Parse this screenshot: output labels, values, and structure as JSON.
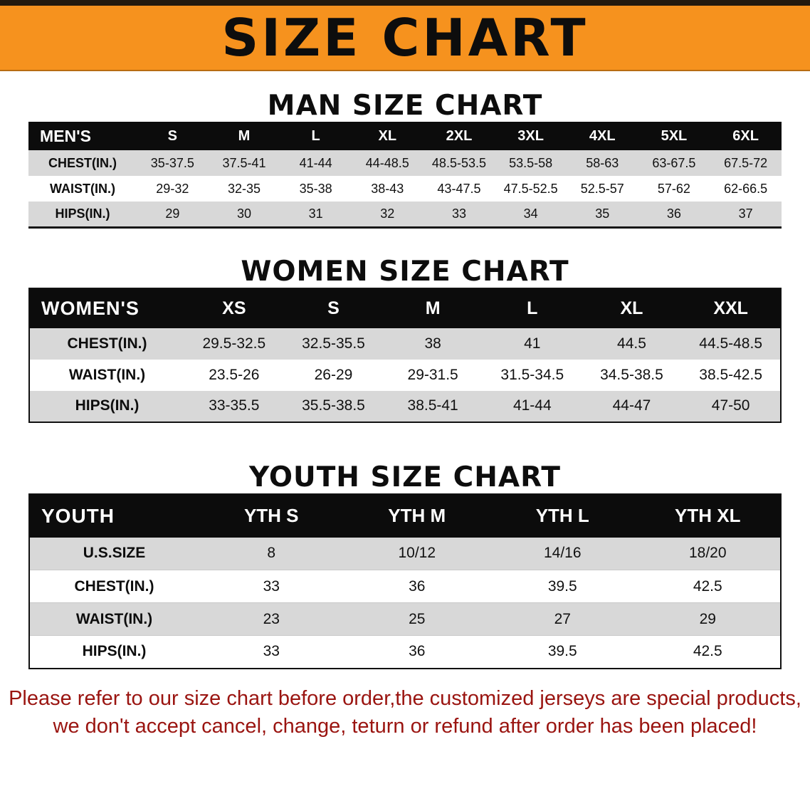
{
  "banner": {
    "title": "SIZE CHART",
    "bg_color": "#f6921e"
  },
  "colors": {
    "header_bg": "#0c0c0c",
    "stripe_gray": "#d8d8d8",
    "notice_red": "#9a1410"
  },
  "sections": [
    {
      "heading": "MAN SIZE CHART",
      "table": {
        "header": [
          "MEN'S",
          "S",
          "M",
          "L",
          "XL",
          "2XL",
          "3XL",
          "4XL",
          "5XL",
          "6XL"
        ],
        "rows": [
          [
            "CHEST(IN.)",
            "35-37.5",
            "37.5-41",
            "41-44",
            "44-48.5",
            "48.5-53.5",
            "53.5-58",
            "58-63",
            "63-67.5",
            "67.5-72"
          ],
          [
            "WAIST(IN.)",
            "29-32",
            "32-35",
            "35-38",
            "38-43",
            "43-47.5",
            "47.5-52.5",
            "52.5-57",
            "57-62",
            "62-66.5"
          ],
          [
            "HIPS(IN.)",
            "29",
            "30",
            "31",
            "32",
            "33",
            "34",
            "35",
            "36",
            "37"
          ]
        ]
      }
    },
    {
      "heading": "WOMEN SIZE CHART",
      "table": {
        "header": [
          "WOMEN'S",
          "XS",
          "S",
          "M",
          "L",
          "XL",
          "XXL"
        ],
        "rows": [
          [
            "CHEST(IN.)",
            "29.5-32.5",
            "32.5-35.5",
            "38",
            "41",
            "44.5",
            "44.5-48.5"
          ],
          [
            "WAIST(IN.)",
            "23.5-26",
            "26-29",
            "29-31.5",
            "31.5-34.5",
            "34.5-38.5",
            "38.5-42.5"
          ],
          [
            "HIPS(IN.)",
            "33-35.5",
            "35.5-38.5",
            "38.5-41",
            "41-44",
            "44-47",
            "47-50"
          ]
        ]
      }
    },
    {
      "heading": "YOUTH SIZE CHART",
      "table": {
        "header": [
          "YOUTH",
          "YTH S",
          "YTH M",
          "YTH L",
          "YTH XL"
        ],
        "rows": [
          [
            "U.S.SIZE",
            "8",
            "10/12",
            "14/16",
            "18/20"
          ],
          [
            "CHEST(IN.)",
            "33",
            "36",
            "39.5",
            "42.5"
          ],
          [
            "WAIST(IN.)",
            "23",
            "25",
            "27",
            "29"
          ],
          [
            "HIPS(IN.)",
            "33",
            "36",
            "39.5",
            "42.5"
          ]
        ]
      }
    }
  ],
  "footer": {
    "line1": "Please refer to our size chart before order,the customized jerseys are special products,",
    "line2": "we don't accept cancel, change, teturn or refund after order has been placed!"
  }
}
